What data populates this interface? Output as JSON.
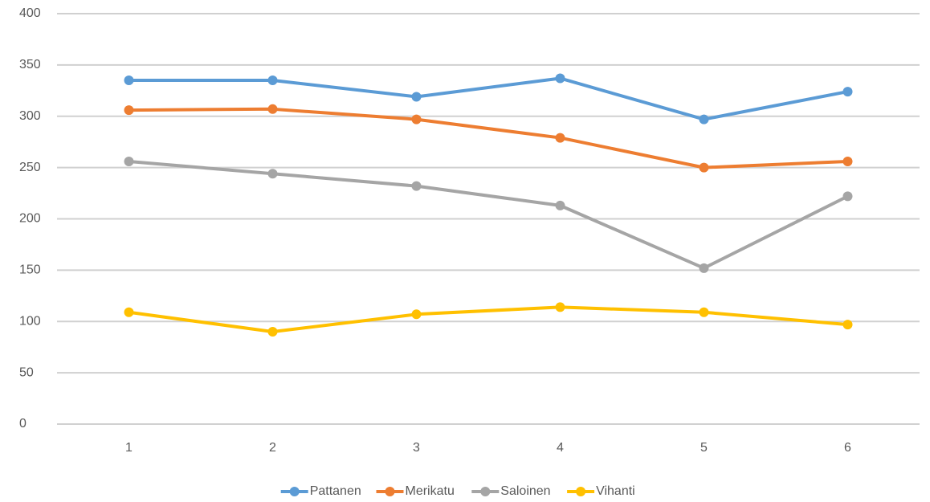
{
  "chart_data": {
    "type": "line",
    "categories": [
      "1",
      "2",
      "3",
      "4",
      "5",
      "6"
    ],
    "series": [
      {
        "name": "Pattanen",
        "color": "#5b9bd5",
        "values": [
          335,
          335,
          319,
          337,
          297,
          324
        ]
      },
      {
        "name": "Merikatu",
        "color": "#ed7d31",
        "values": [
          306,
          307,
          297,
          279,
          250,
          256
        ]
      },
      {
        "name": "Saloinen",
        "color": "#a5a5a5",
        "values": [
          256,
          244,
          232,
          213,
          152,
          222
        ]
      },
      {
        "name": "Vihanti",
        "color": "#ffc000",
        "values": [
          109,
          90,
          107,
          114,
          109,
          97
        ]
      }
    ],
    "ylim": [
      0,
      400
    ],
    "yticks": [
      0,
      50,
      100,
      150,
      200,
      250,
      300,
      350,
      400
    ],
    "grid": true,
    "legend": "bottom"
  }
}
